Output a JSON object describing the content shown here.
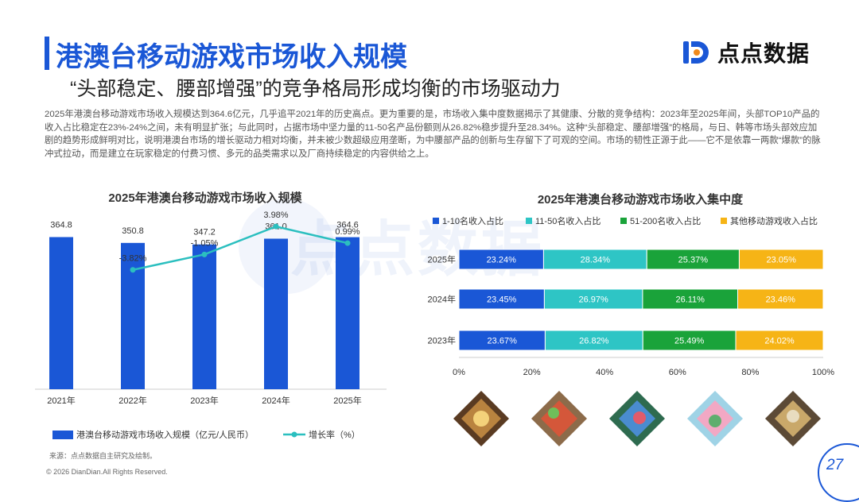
{
  "header": {
    "title": "港澳台移动游戏市场收入规模",
    "subtitle": "“头部稳定、腰部增强”的竞争格局形成均衡的市场驱动力",
    "logo_text": "点点数据"
  },
  "intro": "2025年港澳台移动游戏市场收入规模达到364.6亿元，几乎追平2021年的历史高点。更为重要的是，市场收入集中度数据揭示了其健康、分散的竞争结构：2023年至2025年间，头部TOP10产品的收入占比稳定在23%-24%之间，未有明显扩张；与此同时，占据市场中坚力量的11-50名产品份额则从26.82%稳步提升至28.34%。这种“头部稳定、腰部增强”的格局，与日、韩等市场头部效应加剧的趋势形成鲜明对比，说明港澳台市场的增长驱动力相对均衡，并未被少数超级应用垄断，为中腰部产品的创新与生存留下了可观的空间。市场的韧性正源于此——它不是依靠一两款“爆款”的脉冲式拉动，而是建立在玩家稳定的付费习惯、多元的品类需求以及厂商持续稳定的内容供给之上。",
  "watermark": "点点数据",
  "chart_data": [
    {
      "type": "bar",
      "title": "2025年港澳台移动游戏市场收入规模",
      "categories": [
        "2021年",
        "2022年",
        "2023年",
        "2024年",
        "2025年"
      ],
      "series": [
        {
          "name": "港澳台移动游戏市场收入规模（亿元/人民币）",
          "type": "bar",
          "values": [
            364.8,
            350.8,
            347.2,
            361.0,
            364.6
          ],
          "labels": [
            "364.8",
            "350.8",
            "347.2",
            "361.0",
            "364.6"
          ]
        },
        {
          "name": "增长率（%）",
          "type": "line",
          "x": [
            "2022年",
            "2023年",
            "2024年",
            "2025年"
          ],
          "values": [
            -3.82,
            -1.05,
            3.98,
            0.99
          ],
          "labels": [
            "-3.82%",
            "-1.05%",
            "3.98%",
            "0.99%"
          ]
        }
      ],
      "colors": {
        "bar": "#1a57d6",
        "line": "#2bbfbf"
      }
    },
    {
      "type": "bar",
      "orientation": "horizontal",
      "stacked": true,
      "title": "2025年港澳台移动游戏市场收入集中度",
      "categories": [
        "2025年",
        "2024年",
        "2023年"
      ],
      "series": [
        {
          "name": "1-10名收入占比",
          "color": "#1a57d6",
          "values": [
            23.24,
            23.45,
            23.67
          ],
          "labels": [
            "23.24%",
            "23.45%",
            "23.67%"
          ]
        },
        {
          "name": "11-50名收入占比",
          "color": "#2ec5c5",
          "values": [
            28.34,
            26.97,
            26.82
          ],
          "labels": [
            "28.34%",
            "26.97%",
            "26.82%"
          ]
        },
        {
          "name": "51-200名收入占比",
          "color": "#1aa33a",
          "values": [
            25.37,
            26.11,
            25.49
          ],
          "labels": [
            "25.37%",
            "26.11%",
            "25.49%"
          ]
        },
        {
          "name": "其他移动游戏收入占比",
          "color": "#f6b416",
          "values": [
            23.05,
            23.46,
            24.02
          ],
          "labels": [
            "23.05%",
            "23.46%",
            "24.02%"
          ]
        }
      ],
      "xticks": [
        "0%",
        "20%",
        "40%",
        "60%",
        "80%",
        "100%"
      ],
      "xlim": [
        0,
        100
      ]
    }
  ],
  "footer": {
    "source": "来源：点点数据自主研究及绘制。",
    "copyright": "© 2026 DianDian.All Rights Reserved.",
    "page_number": "27"
  },
  "games": [
    "game-thumbnail-1",
    "game-thumbnail-2",
    "game-thumbnail-3",
    "game-thumbnail-4",
    "game-thumbnail-5"
  ],
  "colors": {
    "accent": "#1a57d6",
    "logo_orange": "#f08a1c"
  }
}
